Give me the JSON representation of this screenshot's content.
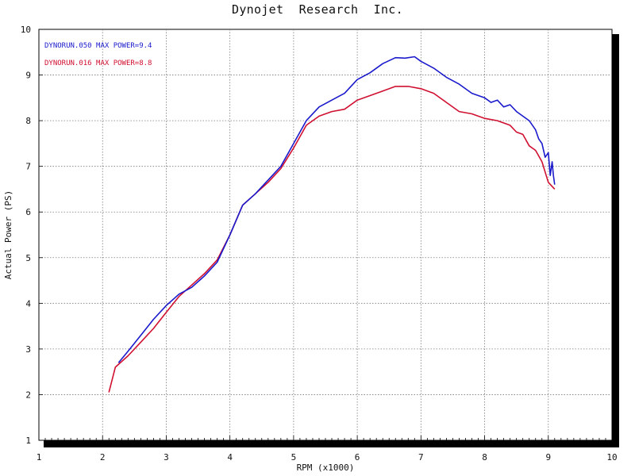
{
  "chart_data": {
    "type": "line",
    "title": "Dynojet  Research  Inc.",
    "xlabel": "RPM (x1000)",
    "ylabel": "Actual Power (PS)",
    "xlim": [
      1,
      10
    ],
    "ylim": [
      1,
      10
    ],
    "xticks": [
      "1",
      "2",
      "3",
      "4",
      "5",
      "6",
      "7",
      "8",
      "9",
      "10"
    ],
    "yticks": [
      "1",
      "2",
      "3",
      "4",
      "5",
      "6",
      "7",
      "8",
      "9",
      "10"
    ],
    "grid": true,
    "legend_position": "top-left",
    "series": [
      {
        "name": "DYNORUN.050  MAX POWER=9.4",
        "color": "#1a1acc",
        "x": [
          2.25,
          2.4,
          2.6,
          2.8,
          3.0,
          3.2,
          3.4,
          3.6,
          3.8,
          4.0,
          4.2,
          4.4,
          4.6,
          4.8,
          5.0,
          5.2,
          5.4,
          5.6,
          5.8,
          6.0,
          6.2,
          6.4,
          6.6,
          6.75,
          6.9,
          7.0,
          7.2,
          7.4,
          7.6,
          7.8,
          8.0,
          8.1,
          8.2,
          8.3,
          8.4,
          8.5,
          8.6,
          8.7,
          8.8,
          8.85,
          8.9,
          8.95,
          9.0,
          9.03,
          9.06,
          9.08,
          9.1
        ],
        "values": [
          2.7,
          2.95,
          3.3,
          3.65,
          3.95,
          4.2,
          4.35,
          4.6,
          4.9,
          5.5,
          6.15,
          6.4,
          6.7,
          7.0,
          7.5,
          8.0,
          8.3,
          8.45,
          8.6,
          8.9,
          9.05,
          9.25,
          9.38,
          9.37,
          9.4,
          9.3,
          9.15,
          8.95,
          8.8,
          8.6,
          8.5,
          8.4,
          8.45,
          8.3,
          8.35,
          8.2,
          8.1,
          8.0,
          7.8,
          7.6,
          7.5,
          7.2,
          7.3,
          6.8,
          7.1,
          6.8,
          6.6
        ]
      },
      {
        "name": "DYNORUN.016  MAX POWER=8.8",
        "color": "#d01030",
        "x": [
          2.1,
          2.2,
          2.4,
          2.6,
          2.8,
          3.0,
          3.2,
          3.4,
          3.6,
          3.8,
          4.0,
          4.2,
          4.4,
          4.6,
          4.8,
          5.0,
          5.2,
          5.4,
          5.6,
          5.8,
          6.0,
          6.2,
          6.4,
          6.6,
          6.8,
          7.0,
          7.2,
          7.4,
          7.6,
          7.8,
          8.0,
          8.2,
          8.4,
          8.5,
          8.6,
          8.7,
          8.8,
          8.9,
          9.0,
          9.1
        ],
        "values": [
          2.05,
          2.6,
          2.85,
          3.15,
          3.45,
          3.8,
          4.15,
          4.4,
          4.65,
          4.95,
          5.5,
          6.15,
          6.4,
          6.65,
          6.95,
          7.4,
          7.9,
          8.1,
          8.2,
          8.25,
          8.45,
          8.55,
          8.65,
          8.75,
          8.75,
          8.7,
          8.6,
          8.4,
          8.2,
          8.15,
          8.05,
          8.0,
          7.9,
          7.75,
          7.7,
          7.45,
          7.35,
          7.1,
          6.65,
          6.5
        ]
      }
    ]
  }
}
